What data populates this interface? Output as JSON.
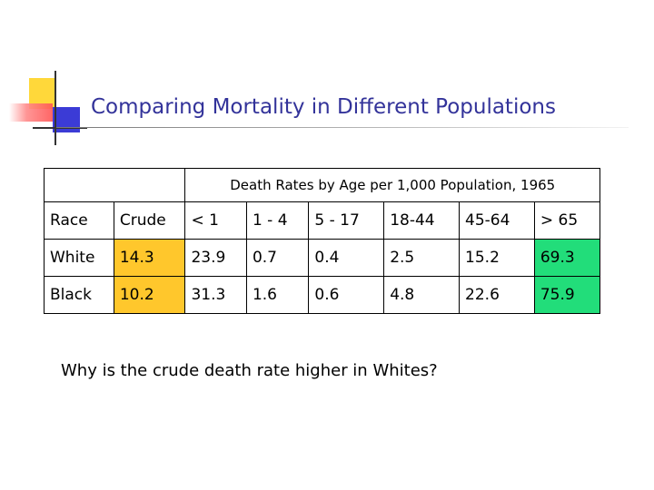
{
  "slide": {
    "title": "Comparing Mortality in Different Populations",
    "question": "Why is the crude death rate higher in Whites?"
  },
  "table": {
    "caption": "Death Rates by Age per 1,000 Population, 1965",
    "headers": [
      "Race",
      "Crude",
      "< 1",
      "1 - 4",
      "5 - 17",
      "18-44",
      "45-64",
      "> 65"
    ],
    "rows": [
      {
        "race": "White",
        "values": [
          "14.3",
          "23.9",
          "0.7",
          "0.4",
          "2.5",
          "15.2",
          "69.3"
        ]
      },
      {
        "race": "Black",
        "values": [
          "10.2",
          "31.3",
          "1.6",
          "0.6",
          "4.8",
          "22.6",
          "75.9"
        ]
      }
    ]
  },
  "colors": {
    "title": "#33339a",
    "crude_highlight": "#ffc72c",
    "elderly_highlight": "#22dd7a"
  }
}
